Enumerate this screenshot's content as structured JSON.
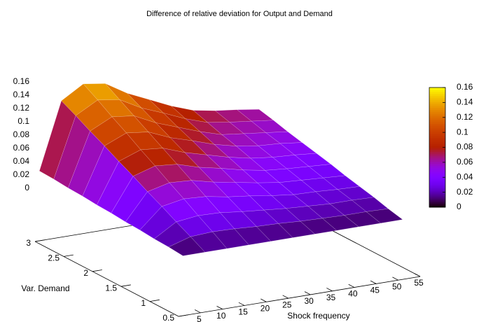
{
  "chart_data": {
    "type": "surface",
    "title": "Difference of relative deviation for Output and Demand",
    "x_label": "Shock frequency",
    "y_label": "Var. Demand",
    "x": [
      1,
      6,
      11,
      16,
      21,
      26,
      31,
      36,
      41,
      46,
      51
    ],
    "y": [
      0.5,
      0.75,
      1,
      1.25,
      1.5,
      1.75,
      2,
      2.25,
      2.5,
      2.75,
      3
    ],
    "z": [
      [
        0.01,
        0.012,
        0.013,
        0.015,
        0.016,
        0.018,
        0.019,
        0.021,
        0.022,
        0.024,
        0.025
      ],
      [
        0.01,
        0.022,
        0.033,
        0.045,
        0.056,
        0.068,
        0.079,
        0.091,
        0.102,
        0.114,
        0.125
      ],
      [
        0.01,
        0.024,
        0.037,
        0.051,
        0.064,
        0.078,
        0.091,
        0.105,
        0.118,
        0.132,
        0.145
      ],
      [
        0.01,
        0.023,
        0.036,
        0.049,
        0.062,
        0.075,
        0.088,
        0.101,
        0.114,
        0.127,
        0.14
      ],
      [
        0.01,
        0.021,
        0.032,
        0.043,
        0.054,
        0.065,
        0.076,
        0.087,
        0.098,
        0.109,
        0.12
      ],
      [
        0.01,
        0.02,
        0.029,
        0.039,
        0.048,
        0.058,
        0.067,
        0.077,
        0.086,
        0.096,
        0.105
      ],
      [
        0.01,
        0.018,
        0.026,
        0.034,
        0.042,
        0.05,
        0.058,
        0.066,
        0.074,
        0.082,
        0.09
      ],
      [
        0.01,
        0.017,
        0.024,
        0.03,
        0.037,
        0.044,
        0.051,
        0.058,
        0.064,
        0.071,
        0.078
      ],
      [
        0.01,
        0.016,
        0.022,
        0.029,
        0.035,
        0.041,
        0.047,
        0.053,
        0.06,
        0.066,
        0.072
      ],
      [
        0.01,
        0.016,
        0.022,
        0.027,
        0.033,
        0.039,
        0.045,
        0.051,
        0.056,
        0.062,
        0.068
      ],
      [
        0.01,
        0.015,
        0.021,
        0.026,
        0.031,
        0.037,
        0.042,
        0.047,
        0.052,
        0.058,
        0.063
      ]
    ],
    "xlim": [
      0,
      55
    ],
    "ylim": [
      0.5,
      3
    ],
    "zlim": [
      0,
      0.16
    ],
    "xticks": [
      5,
      10,
      15,
      20,
      25,
      30,
      35,
      40,
      45,
      50,
      55
    ],
    "yticks": [
      0.5,
      1,
      1.5,
      2,
      2.5,
      3
    ],
    "zticks": [
      0,
      0.02,
      0.04,
      0.06,
      0.08,
      0.1,
      0.12,
      0.14,
      0.16
    ],
    "ticslevel": 0.5,
    "palette": "rgbformulae 7,5,15",
    "cblim": [
      0,
      0.16
    ],
    "cbticks": [
      0,
      0.02,
      0.04,
      0.06,
      0.08,
      0.1,
      0.12,
      0.14,
      0.16
    ]
  }
}
